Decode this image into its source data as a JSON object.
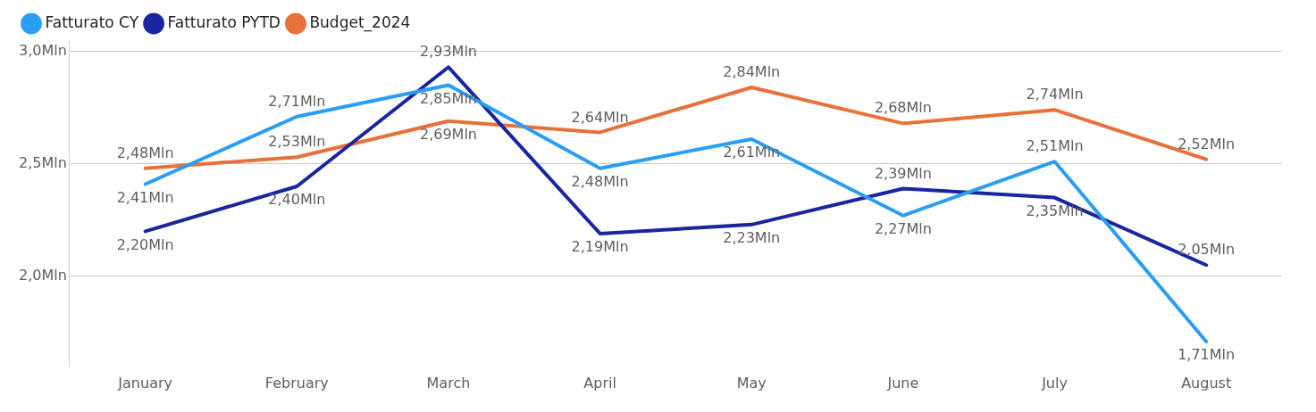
{
  "chart_data": {
    "type": "line",
    "categories": [
      "January",
      "February",
      "March",
      "April",
      "May",
      "June",
      "July",
      "August"
    ],
    "series": [
      {
        "name": "Fatturato CY",
        "color": "#2a9df4",
        "values": [
          2.41,
          2.71,
          2.85,
          2.48,
          2.61,
          2.27,
          2.51,
          1.71
        ],
        "value_labels": [
          "2,41Mln",
          "2,71Mln",
          "2,85Mln",
          "2,48Mln",
          "2,61Mln",
          "2,27Mln",
          "2,51Mln",
          "1,71Mln"
        ]
      },
      {
        "name": "Fatturato PYTD",
        "color": "#1a25a0",
        "values": [
          2.2,
          2.4,
          2.93,
          2.19,
          2.23,
          2.39,
          2.35,
          2.05
        ],
        "value_labels": [
          "2,20Mln",
          "2,40Mln",
          "2,93Mln",
          "2,19Mln",
          "2,23Mln",
          "2,39Mln",
          "2,35Mln",
          "2,05Mln"
        ]
      },
      {
        "name": "Budget_2024",
        "color": "#e8703a",
        "values": [
          2.48,
          2.53,
          2.69,
          2.64,
          2.84,
          2.68,
          2.74,
          2.52
        ],
        "value_labels": [
          "2,48Mln",
          "2,53Mln",
          "2,69Mln",
          "2,64Mln",
          "2,84Mln",
          "2,68Mln",
          "2,74Mln",
          "2,52Mln"
        ]
      }
    ],
    "ylim": [
      1.6,
      3.05
    ],
    "yticks": [
      {
        "value": 2.0,
        "label": "2,0Mln"
      },
      {
        "value": 2.5,
        "label": "2,5Mln"
      },
      {
        "value": 3.0,
        "label": "3,0Mln"
      }
    ],
    "grid": "y",
    "legend": "top left",
    "marker": "none",
    "line_style": "solid"
  }
}
